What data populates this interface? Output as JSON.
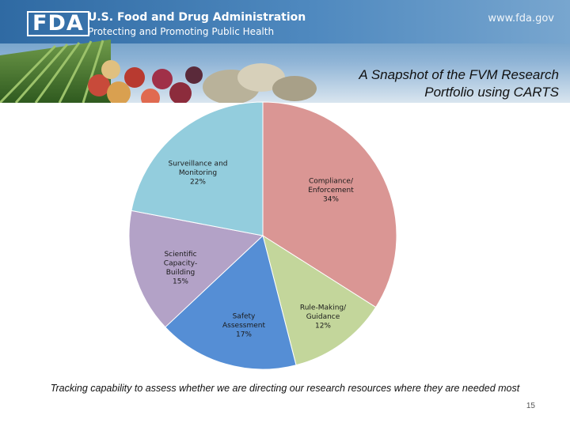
{
  "header": {
    "logo_text": "FDA",
    "agency_name": "U.S. Food and Drug Administration",
    "tagline": "Protecting and Promoting Public Health",
    "website": "www.fda.gov"
  },
  "slide": {
    "title_line1": "A Snapshot of the FVM Research",
    "title_line2": "Portfolio using CARTS",
    "caption": "Tracking capability to assess whether we are directing our research resources where they are needed most",
    "page_number": "15"
  },
  "chart_data": {
    "type": "pie",
    "title": "A Snapshot of the FVM Research Portfolio using CARTS",
    "start_angle": "12 o'clock, clockwise",
    "legend": "none (labels on slices)",
    "slices": [
      {
        "label_lines": [
          "Compliance/",
          "Enforcement"
        ],
        "percent_label": "34%",
        "value": 34,
        "color": "#da9694"
      },
      {
        "label_lines": [
          "Rule-Making/",
          "Guidance"
        ],
        "percent_label": "12%",
        "value": 12,
        "color": "#c3d69b"
      },
      {
        "label_lines": [
          "Safety",
          "Assessment"
        ],
        "percent_label": "17%",
        "value": 17,
        "color": "#558ed5"
      },
      {
        "label_lines": [
          "Scientific",
          "Capacity-",
          "Building"
        ],
        "percent_label": "15%",
        "value": 15,
        "color": "#b3a2c7"
      },
      {
        "label_lines": [
          "Surveillance and",
          "Monitoring"
        ],
        "percent_label": "22%",
        "value": 22,
        "color": "#93cddd"
      }
    ]
  }
}
